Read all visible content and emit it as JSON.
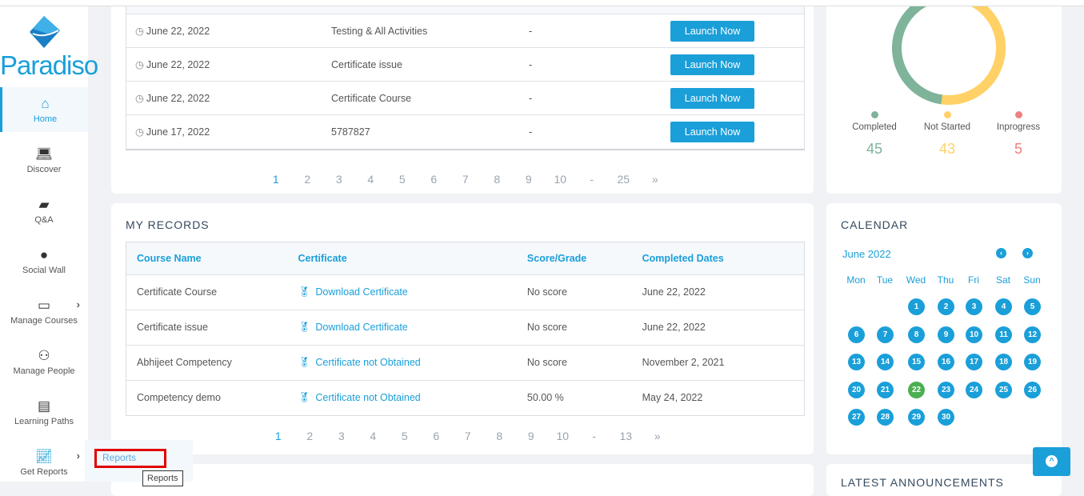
{
  "brand": {
    "name": "Paradiso"
  },
  "sidebar": {
    "items": [
      {
        "label": "Home",
        "icon": "home-icon"
      },
      {
        "label": "Discover",
        "icon": "laptop-icon"
      },
      {
        "label": "Q&A",
        "icon": "chat-icon"
      },
      {
        "label": "Social Wall",
        "icon": "wechat-icon"
      },
      {
        "label": "Manage Courses",
        "icon": "monitor-icon"
      },
      {
        "label": "Manage People",
        "icon": "people-icon"
      },
      {
        "label": "Learning Paths",
        "icon": "book-icon"
      },
      {
        "label": "Get Reports",
        "icon": "chart-icon"
      }
    ],
    "submenu": {
      "item": "Reports",
      "tooltip": "Reports"
    }
  },
  "courses": {
    "rows": [
      {
        "date": "June 22, 2022",
        "name": "Testing & All Activities",
        "extra": "-",
        "action": "Launch Now"
      },
      {
        "date": "June 22, 2022",
        "name": "Certificate issue",
        "extra": "-",
        "action": "Launch Now"
      },
      {
        "date": "June 22, 2022",
        "name": "Certificate Course",
        "extra": "-",
        "action": "Launch Now"
      },
      {
        "date": "June 17, 2022",
        "name": "5787827",
        "extra": "-",
        "action": "Launch Now"
      }
    ],
    "pages": [
      "1",
      "2",
      "3",
      "4",
      "5",
      "6",
      "7",
      "8",
      "9",
      "10",
      "-",
      "25",
      "»"
    ],
    "current_page": "1"
  },
  "records": {
    "title": "MY RECORDS",
    "headers": [
      "Course Name",
      "Certificate",
      "Score/Grade",
      "Completed Dates"
    ],
    "rows": [
      {
        "course": "Certificate Course",
        "certificate": "Download Certificate",
        "score": "No score",
        "date": "June 22, 2022"
      },
      {
        "course": "Certificate issue",
        "certificate": "Download Certificate",
        "score": "No score",
        "date": "June 22, 2022"
      },
      {
        "course": "Abhijeet Competency",
        "certificate": "Certificate not Obtained",
        "score": "No score",
        "date": "November 2, 2021"
      },
      {
        "course": "Competency demo",
        "certificate": "Certificate not Obtained",
        "score": "50.00 %",
        "date": "May 24, 2022"
      }
    ],
    "pages": [
      "1",
      "2",
      "3",
      "4",
      "5",
      "6",
      "7",
      "8",
      "9",
      "10",
      "-",
      "13",
      "»"
    ],
    "current_page": "1"
  },
  "progress": {
    "items": [
      {
        "label": "Completed",
        "value": 45,
        "color": "#7fb39a"
      },
      {
        "label": "Not Started",
        "value": 43,
        "color": "#ffd166"
      },
      {
        "label": "Inprogress",
        "value": 5,
        "color": "#f08080"
      }
    ]
  },
  "calendar": {
    "title": "CALENDAR",
    "month": "June 2022",
    "weekdays": [
      "Mon",
      "Tue",
      "Wed",
      "Thu",
      "Fri",
      "Sat",
      "Sun"
    ],
    "first_weekday": "Wed",
    "days_in_month": 30,
    "today": 22,
    "colors": {
      "day": "#1a9fd9",
      "today": "#4caf50"
    }
  },
  "announcements": {
    "title": "LATEST ANNOUNCEMENTS"
  }
}
